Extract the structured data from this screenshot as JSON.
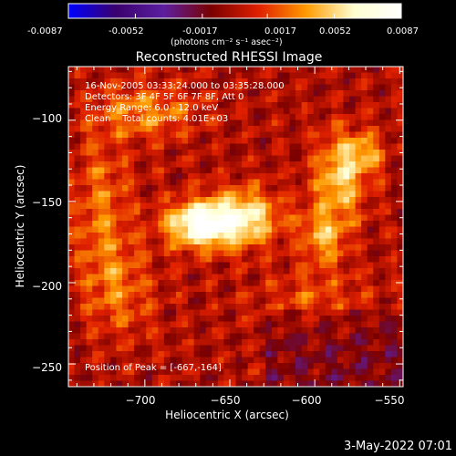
{
  "colorbar": {
    "ticks": [
      "-0.0087",
      "-0.0052",
      "-0.0017",
      "0.0017",
      "0.0052",
      "0.0087"
    ],
    "tick_values": [
      -0.0087,
      -0.0052,
      -0.0017,
      0.0017,
      0.0052,
      0.0087
    ],
    "range": [
      -0.0087,
      0.0087
    ],
    "units": "(photons cm⁻² s⁻¹ asec⁻²)",
    "colors": [
      "#0000ff",
      "#3a006e",
      "#5c1fa0",
      "#7a0000",
      "#e02000",
      "#ff9a00",
      "#ffffd0",
      "#ffffff"
    ]
  },
  "chart_data": {
    "type": "heatmap",
    "title": "Reconstructed RHESSI Image",
    "xlabel": "Heliocentric X (arcsec)",
    "ylabel": "Heliocentric Y (arcsec)",
    "xlim": [
      -745,
      -548
    ],
    "ylim": [
      -264,
      -67
    ],
    "xticks": [
      -700,
      -650,
      -600,
      -550
    ],
    "yticks": [
      -100,
      -150,
      -200,
      -250
    ],
    "xtick_labels": [
      "−700",
      "−650",
      "−600",
      "−550"
    ],
    "ytick_labels": [
      "−100",
      "−150",
      "−200",
      "−250"
    ],
    "peak": [
      -667,
      -164
    ],
    "sources": [
      {
        "x": -667,
        "y": -164,
        "sx": 14,
        "sy": 10,
        "amp": 0.0087
      },
      {
        "x": -640,
        "y": -160,
        "sx": 14,
        "sy": 12,
        "amp": 0.0058
      },
      {
        "x": -585,
        "y": -135,
        "sx": 11,
        "sy": 18,
        "amp": 0.0052
      },
      {
        "x": -570,
        "y": -120,
        "sx": 8,
        "sy": 8,
        "amp": 0.0035
      },
      {
        "x": -595,
        "y": -172,
        "sx": 10,
        "sy": 12,
        "amp": 0.004
      },
      {
        "x": -725,
        "y": -155,
        "sx": 12,
        "sy": 30,
        "amp": 0.003
      },
      {
        "x": -700,
        "y": -95,
        "sx": 22,
        "sy": 12,
        "amp": 0.0032
      },
      {
        "x": -715,
        "y": -205,
        "sx": 15,
        "sy": 20,
        "amp": 0.0025
      },
      {
        "x": -600,
        "y": -210,
        "sx": 25,
        "sy": 12,
        "amp": 0.002
      }
    ],
    "annotations": [
      "16-Nov-2005 03:33:24.000 to 03:35:28.000",
      "Detectors: 3F 4F 5F 6F 7F 8F, Att 0",
      "Energy Range: 6.0 - 12.0 keV",
      "Clean    Total counts: 4.01E+03"
    ],
    "peak_label": "Position of Peak = [-667,-164]"
  },
  "footer": {
    "timestamp": "3-May-2022 07:01"
  }
}
